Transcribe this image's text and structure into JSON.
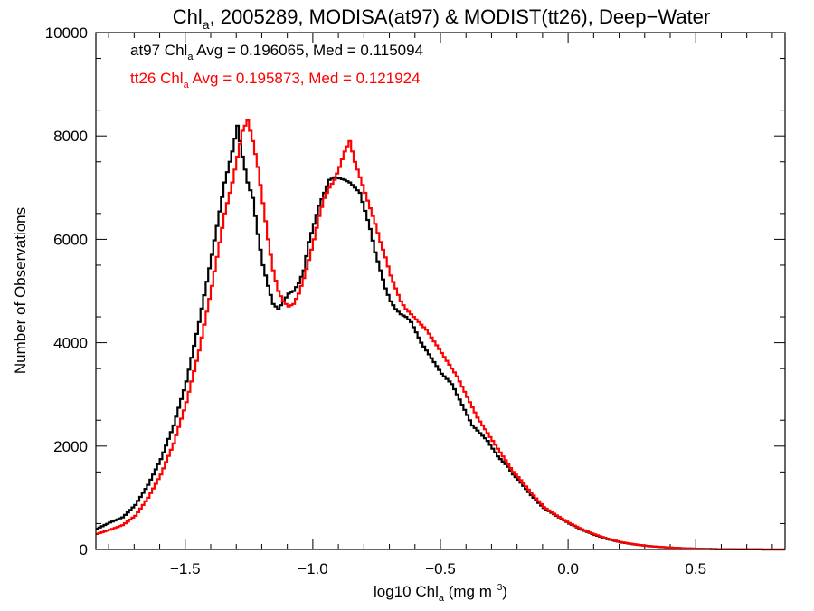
{
  "chart_data": {
    "type": "histogram-step",
    "title": {
      "main": "Chl",
      "sub": "a",
      "rest": ", 2005289, MODISA(at97) & MODIST(tt26), Deep−Water"
    },
    "xlabel": {
      "main": "log10 Chl",
      "sub": "a",
      "rest": " (mg m",
      "sup": "−3",
      "end": ")"
    },
    "ylabel": "Number of Observations",
    "xlim": [
      -1.85,
      0.85
    ],
    "ylim": [
      0,
      10000
    ],
    "x_ticks": [
      -1.5,
      -1.0,
      -0.5,
      0.0,
      0.5
    ],
    "x_tick_labels": [
      "−1.5",
      "−1.0",
      "−0.5",
      "0.0",
      "0.5"
    ],
    "y_ticks": [
      0,
      2000,
      4000,
      6000,
      8000,
      10000
    ],
    "y_tick_labels": [
      "0",
      "2000",
      "4000",
      "6000",
      "8000",
      "10000"
    ],
    "annotations": [
      {
        "pre": "at97 Chl",
        "sub": "a",
        "post": " Avg = 0.196065, Med = 0.115094",
        "color": "#000000"
      },
      {
        "pre": "tt26 Chl",
        "sub": "a",
        "post": " Avg = 0.195873, Med = 0.121924",
        "color": "#ff0000"
      }
    ],
    "series": [
      {
        "color": "#000000",
        "x": [
          -1.85,
          -1.8,
          -1.75,
          -1.7,
          -1.65,
          -1.6,
          -1.55,
          -1.5,
          -1.45,
          -1.4,
          -1.35,
          -1.32,
          -1.3,
          -1.28,
          -1.26,
          -1.24,
          -1.22,
          -1.2,
          -1.18,
          -1.16,
          -1.14,
          -1.12,
          -1.1,
          -1.08,
          -1.06,
          -1.04,
          -1.02,
          -1.0,
          -0.98,
          -0.96,
          -0.94,
          -0.92,
          -0.9,
          -0.88,
          -0.86,
          -0.84,
          -0.82,
          -0.8,
          -0.78,
          -0.76,
          -0.74,
          -0.72,
          -0.7,
          -0.68,
          -0.66,
          -0.64,
          -0.62,
          -0.6,
          -0.58,
          -0.56,
          -0.54,
          -0.52,
          -0.5,
          -0.48,
          -0.46,
          -0.44,
          -0.42,
          -0.4,
          -0.38,
          -0.36,
          -0.34,
          -0.32,
          -0.3,
          -0.28,
          -0.26,
          -0.24,
          -0.22,
          -0.2,
          -0.15,
          -0.1,
          -0.05,
          0.0,
          0.05,
          0.1,
          0.15,
          0.2,
          0.25,
          0.3,
          0.35,
          0.4,
          0.45,
          0.5,
          0.55,
          0.6,
          0.65,
          0.7,
          0.75,
          0.8,
          0.85
        ],
        "y": [
          400,
          520,
          620,
          860,
          1250,
          1750,
          2400,
          3250,
          4400,
          5700,
          7100,
          7700,
          8200,
          7600,
          7100,
          6800,
          6100,
          5500,
          5100,
          4750,
          4650,
          4800,
          4950,
          5000,
          5150,
          5400,
          5950,
          6300,
          6650,
          6900,
          7150,
          7200,
          7180,
          7150,
          7100,
          7000,
          6900,
          6550,
          6200,
          5750,
          5400,
          5050,
          4800,
          4650,
          4550,
          4500,
          4400,
          4200,
          4000,
          3850,
          3700,
          3550,
          3400,
          3300,
          3200,
          3000,
          2800,
          2600,
          2400,
          2300,
          2200,
          2100,
          1950,
          1800,
          1700,
          1600,
          1450,
          1350,
          1050,
          800,
          650,
          500,
          380,
          280,
          200,
          140,
          100,
          70,
          50,
          35,
          22,
          15,
          10,
          6,
          4,
          2,
          1,
          0,
          0
        ]
      },
      {
        "color": "#ff0000",
        "x": [
          -1.85,
          -1.8,
          -1.75,
          -1.7,
          -1.65,
          -1.6,
          -1.55,
          -1.5,
          -1.45,
          -1.4,
          -1.35,
          -1.32,
          -1.3,
          -1.28,
          -1.26,
          -1.24,
          -1.22,
          -1.2,
          -1.18,
          -1.16,
          -1.14,
          -1.12,
          -1.1,
          -1.08,
          -1.06,
          -1.04,
          -1.02,
          -1.0,
          -0.98,
          -0.96,
          -0.94,
          -0.92,
          -0.9,
          -0.88,
          -0.86,
          -0.84,
          -0.82,
          -0.8,
          -0.78,
          -0.76,
          -0.74,
          -0.72,
          -0.7,
          -0.68,
          -0.66,
          -0.64,
          -0.62,
          -0.6,
          -0.58,
          -0.56,
          -0.54,
          -0.52,
          -0.5,
          -0.48,
          -0.46,
          -0.44,
          -0.42,
          -0.4,
          -0.38,
          -0.36,
          -0.34,
          -0.32,
          -0.3,
          -0.28,
          -0.26,
          -0.24,
          -0.22,
          -0.2,
          -0.15,
          -0.1,
          -0.05,
          0.0,
          0.05,
          0.1,
          0.15,
          0.2,
          0.25,
          0.3,
          0.35,
          0.4,
          0.45,
          0.5,
          0.55,
          0.6,
          0.65,
          0.7,
          0.75,
          0.8,
          0.85
        ],
        "y": [
          300,
          380,
          470,
          650,
          1000,
          1450,
          2050,
          2850,
          3850,
          5100,
          6500,
          7100,
          7600,
          8100,
          8300,
          7900,
          7400,
          6700,
          6000,
          5400,
          5000,
          4800,
          4700,
          4750,
          4950,
          5250,
          5600,
          6000,
          6450,
          6800,
          7000,
          7150,
          7400,
          7700,
          7900,
          7500,
          7200,
          6900,
          6600,
          6300,
          5950,
          5650,
          5300,
          5050,
          4800,
          4650,
          4550,
          4450,
          4350,
          4250,
          4100,
          3950,
          3800,
          3650,
          3500,
          3350,
          3150,
          2950,
          2750,
          2550,
          2400,
          2250,
          2100,
          1950,
          1800,
          1650,
          1500,
          1400,
          1100,
          820,
          660,
          510,
          390,
          290,
          210,
          145,
          105,
          72,
          52,
          36,
          23,
          16,
          10,
          6,
          4,
          2,
          1,
          0,
          0
        ]
      }
    ]
  }
}
